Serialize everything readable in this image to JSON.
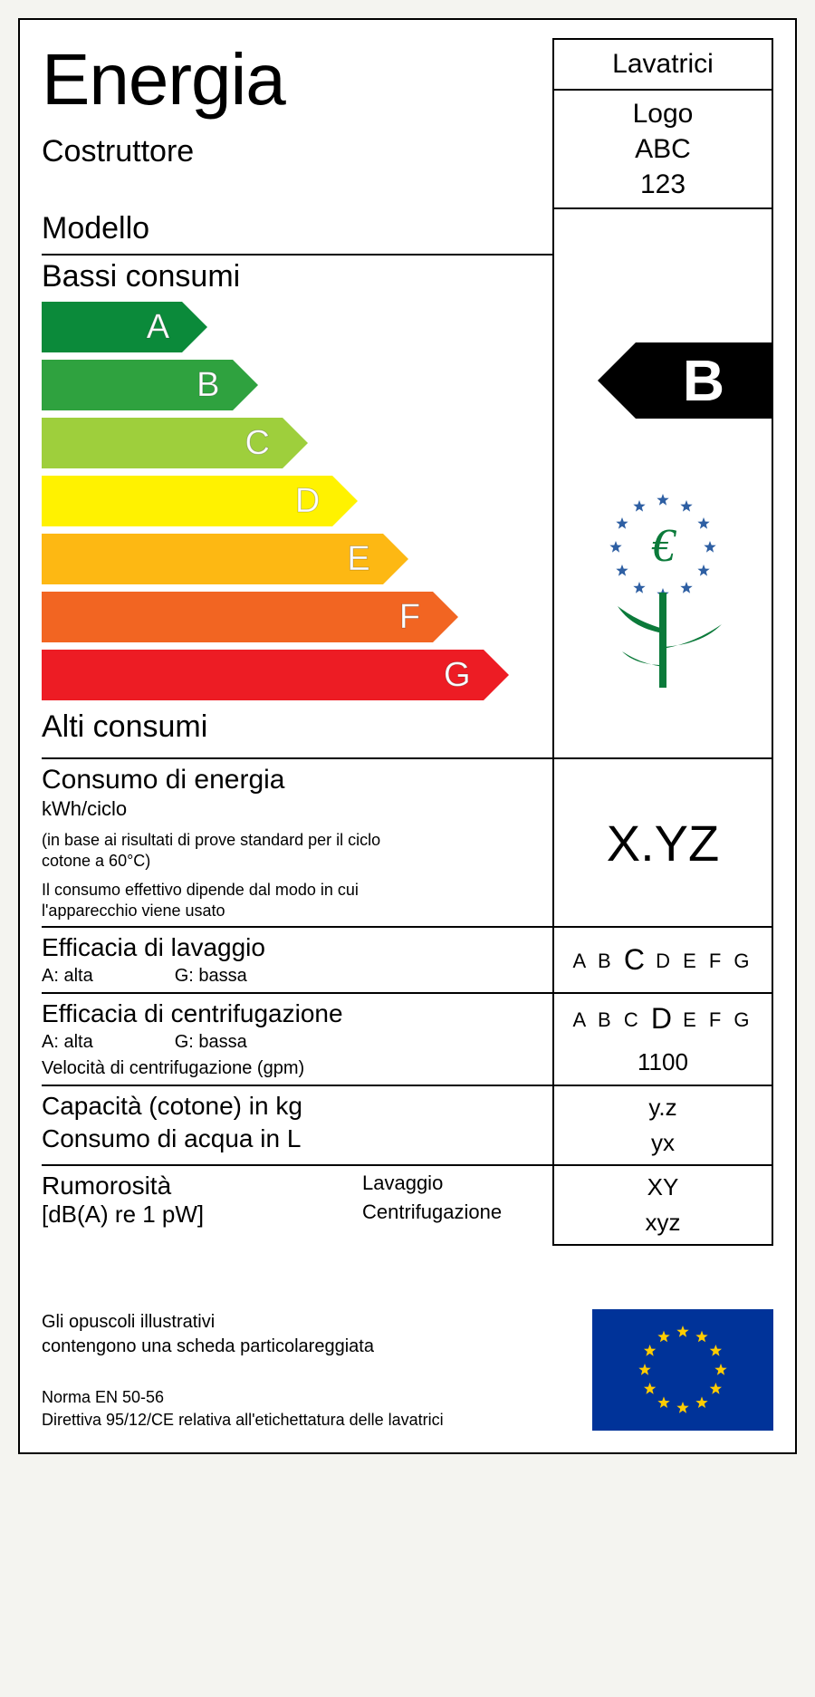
{
  "title": "Energia",
  "category": "Lavatrici",
  "manufacturer_label": "Costruttore",
  "model_label": "Modello",
  "logo": "Logo",
  "brand": "ABC",
  "model": "123",
  "low_consumption": "Bassi consumi",
  "high_consumption": "Alti consumi",
  "bars": [
    {
      "letter": "A",
      "width_pct": 28,
      "color": "#0b8a3a"
    },
    {
      "letter": "B",
      "width_pct": 38,
      "color": "#2fa23f"
    },
    {
      "letter": "C",
      "width_pct": 48,
      "color": "#9ecf3c"
    },
    {
      "letter": "D",
      "width_pct": 58,
      "color": "#fff200"
    },
    {
      "letter": "E",
      "width_pct": 68,
      "color": "#fdb813"
    },
    {
      "letter": "F",
      "width_pct": 78,
      "color": "#f26522"
    },
    {
      "letter": "G",
      "width_pct": 88,
      "color": "#ed1c24"
    }
  ],
  "selected_rating": "B",
  "selected_rating_index": 1,
  "consumption": {
    "title": "Consumo di energia",
    "unit": "kWh/ciclo",
    "note1": "(in base ai risultati di prove standard per il ciclo cotone a 60°C)",
    "note2": "Il consumo effettivo dipende dal modo in cui l'apparecchio viene usato",
    "value": "X.YZ"
  },
  "wash": {
    "title": "Efficacia di lavaggio",
    "a_label": "A: alta",
    "g_label": "G: bassa",
    "scale": "ABCDEFG",
    "selected": "C"
  },
  "spin": {
    "title": "Efficacia di centrifugazione",
    "a_label": "A: alta",
    "g_label": "G: bassa",
    "speed_label": "Velocità di centrifugazione (gpm)",
    "speed_value": "1100",
    "scale": "ABCDEFG",
    "selected": "D"
  },
  "capacity": {
    "label": "Capacità (cotone) in kg",
    "value": "y.z"
  },
  "water": {
    "label": "Consumo di acqua in L",
    "value": "yx"
  },
  "noise": {
    "title": "Rumorosità",
    "unit": "[dB(A) re 1 pW]",
    "wash_label": "Lavaggio",
    "spin_label": "Centrifugazione",
    "wash_value": "XY",
    "spin_value": "xyz"
  },
  "footer": {
    "line1": "Gli opuscoli illustrativi",
    "line2": "contengono una scheda particolareggiata",
    "norm": "Norma EN 50-56",
    "directive": "Direttiva 95/12/CE relativa all'etichettatura delle lavatrici"
  },
  "ecolabel": {
    "star_color": "#2e5fa3",
    "stem_color": "#0b7a3a"
  },
  "euflag": {
    "bg": "#003399",
    "star_color": "#ffcc00"
  }
}
